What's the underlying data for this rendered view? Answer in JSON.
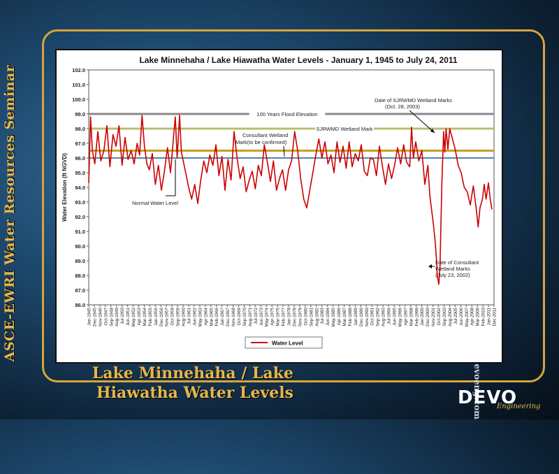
{
  "side_title": "ASCE-EWRI Water Resources Seminar",
  "side_url": "www.devoeng.com",
  "slide_title_line1": "Lake Minnehaha / Lake",
  "slide_title_line2": "Hiawatha Water Levels",
  "logo": {
    "name": "DEVO",
    "tagline": "Engineering"
  },
  "colors": {
    "series": "#cc0000",
    "flood_line": "#8a8a8a",
    "sjrwmd_line": "#b8bd72",
    "consultant_line": "#c8a020",
    "normal_line": "#5a84a8",
    "accent": "#e8b64a"
  },
  "chart_data": {
    "type": "line",
    "title": "Lake Minnehaha / Lake Hiawatha Water Levels - January 1, 1945 to July 24, 2011",
    "ylabel": "Water Elevation (ft NGVD)",
    "xlabel": "",
    "ylim": [
      86.0,
      102.0
    ],
    "yticks": [
      "86.0",
      "87.0",
      "88.0",
      "89.0",
      "90.0",
      "91.0",
      "92.0",
      "93.0",
      "94.0",
      "95.0",
      "96.0",
      "97.0",
      "98.0",
      "99.0",
      "100.0",
      "101.0",
      "102.0"
    ],
    "xlim": [
      1945.0,
      2011.92
    ],
    "xticks": [
      "Jan-1945",
      "Dec-1945",
      "Nov-1946",
      "Oct-1947",
      "Sep-1948",
      "Aug-1949",
      "Jul-1950",
      "Jun-1951",
      "May-1952",
      "Apr-1953",
      "Mar-1954",
      "Feb-1955",
      "Jan-1956",
      "Dec-1956",
      "Nov-1957",
      "Oct-1958",
      "Sep-1959",
      "Aug-1960",
      "Jul-1961",
      "Jun-1962",
      "May-1963",
      "Apr-1964",
      "Mar-1965",
      "Feb-1966",
      "Jan-1967",
      "Dec-1967",
      "Nov-1968",
      "Oct-1969",
      "Sep-1970",
      "Aug-1971",
      "Jul-1972",
      "Jun-1973",
      "May-1974",
      "Apr-1975",
      "Mar-1976",
      "Feb-1977",
      "Jan-1978",
      "Dec-1978",
      "Nov-1979",
      "Oct-1980",
      "Sep-1981",
      "Aug-1982",
      "Jul-1983",
      "Jun-1984",
      "May-1985",
      "Apr-1986",
      "Mar-1987",
      "Feb-1988",
      "Jan-1989",
      "Dec-1989",
      "Nov-1990",
      "Oct-1991",
      "Sep-1992",
      "Aug-1993",
      "Jul-1994",
      "Jun-1995",
      "May-1996",
      "Apr-1997",
      "Mar-1998",
      "Feb-1999",
      "Jan-2000",
      "Dec-2000",
      "Nov-2001",
      "Oct-2002",
      "Sep-2003",
      "Aug-2004",
      "Jul-2005",
      "Jun-2006",
      "May-2007",
      "Apr-2008",
      "Mar-2009",
      "Feb-2010",
      "Jan-2011",
      "Dec-2011"
    ],
    "grid": false,
    "legend": {
      "placement": "bottom-center",
      "entries": [
        "Water Level"
      ]
    },
    "reference_lines": [
      {
        "label": "100 Years Flood Elevation",
        "y": 99.0,
        "color": "#8a8a8a"
      },
      {
        "label": "SJRWMD Wetland Mark",
        "y": 98.0,
        "color": "#b8bd72"
      },
      {
        "label": "Consultant Wetland Mark(to be confirmed)",
        "y": 96.5,
        "color": "#c8a020"
      },
      {
        "label": "Normal Water Level",
        "y": 96.0,
        "color": "#5a84a8"
      }
    ],
    "annotations": [
      {
        "text": "Date of SJRWMD Wetland Marks",
        "text2": "(Oct. 28, 2003)"
      },
      {
        "text": "Date of Consultant",
        "text2": "Wetland Marks",
        "text3": "(July 23, 2002)"
      }
    ],
    "series": [
      {
        "name": "Water Level",
        "color": "#cc0000",
        "x": [
          1945.0,
          1945.3,
          1945.6,
          1946.0,
          1946.5,
          1947.0,
          1947.5,
          1948.0,
          1948.5,
          1949.0,
          1949.5,
          1950.0,
          1950.5,
          1951.0,
          1951.5,
          1952.0,
          1952.5,
          1953.0,
          1953.4,
          1953.8,
          1954.2,
          1954.6,
          1955.0,
          1955.5,
          1956.0,
          1956.5,
          1957.0,
          1957.5,
          1958.0,
          1958.5,
          1959.0,
          1959.3,
          1959.6,
          1960.0,
          1960.3,
          1960.6,
          1961.0,
          1961.5,
          1962.0,
          1962.5,
          1963.0,
          1963.5,
          1964.0,
          1964.5,
          1965.0,
          1965.5,
          1966.0,
          1966.5,
          1967.0,
          1967.5,
          1968.0,
          1968.5,
          1969.0,
          1969.5,
          1970.0,
          1970.5,
          1971.0,
          1971.5,
          1972.0,
          1972.5,
          1973.0,
          1973.5,
          1974.0,
          1974.5,
          1975.0,
          1975.5,
          1976.0,
          1976.5,
          1977.0,
          1977.5,
          1978.0,
          1978.5,
          1979.0,
          1979.5,
          1980.0,
          1980.5,
          1981.0,
          1981.5,
          1982.0,
          1982.5,
          1983.0,
          1983.5,
          1984.0,
          1984.5,
          1985.0,
          1985.5,
          1986.0,
          1986.5,
          1987.0,
          1987.5,
          1988.0,
          1988.5,
          1989.0,
          1989.5,
          1990.0,
          1990.5,
          1991.0,
          1991.5,
          1992.0,
          1992.5,
          1993.0,
          1993.5,
          1994.0,
          1994.5,
          1995.0,
          1995.5,
          1996.0,
          1996.5,
          1997.0,
          1997.5,
          1998.0,
          1998.3,
          1998.6,
          1999.0,
          1999.5,
          2000.0,
          2000.5,
          2001.0,
          2001.3,
          2001.6,
          2001.9,
          2002.2,
          2002.4,
          2002.55,
          2002.8,
          2003.0,
          2003.3,
          2003.6,
          2003.8,
          2004.0,
          2004.3,
          2004.6,
          2005.0,
          2005.5,
          2006.0,
          2006.5,
          2007.0,
          2007.5,
          2008.0,
          2008.5,
          2009.0,
          2009.3,
          2009.6,
          2010.0,
          2010.3,
          2010.6,
          2011.0,
          2011.3,
          2011.56
        ],
        "y": [
          94.3,
          98.8,
          96.5,
          95.6,
          97.8,
          95.8,
          96.5,
          98.2,
          95.4,
          97.6,
          96.8,
          98.2,
          95.5,
          97.4,
          95.9,
          96.5,
          95.6,
          97.0,
          96.2,
          98.9,
          96.8,
          95.6,
          95.2,
          96.3,
          94.2,
          95.5,
          93.8,
          95.1,
          96.7,
          95.0,
          97.4,
          98.8,
          96.0,
          98.9,
          96.4,
          95.8,
          95.0,
          94.0,
          93.2,
          94.2,
          92.9,
          94.5,
          95.8,
          95.0,
          96.2,
          95.5,
          96.9,
          94.8,
          96.1,
          93.8,
          95.9,
          94.5,
          97.8,
          96.0,
          94.6,
          95.4,
          93.7,
          94.5,
          95.1,
          93.9,
          95.5,
          94.8,
          96.9,
          95.7,
          94.4,
          95.8,
          93.8,
          94.6,
          95.2,
          93.8,
          95.2,
          95.8,
          97.8,
          96.5,
          94.6,
          93.2,
          92.6,
          93.8,
          95.0,
          96.2,
          97.3,
          96.0,
          97.1,
          95.6,
          96.2,
          95.0,
          97.1,
          95.7,
          96.8,
          95.3,
          97.1,
          95.4,
          96.3,
          95.8,
          96.9,
          95.1,
          94.8,
          96.0,
          95.9,
          94.8,
          96.8,
          95.4,
          94.2,
          95.6,
          94.6,
          95.5,
          96.7,
          95.6,
          96.9,
          95.7,
          95.4,
          98.1,
          96.0,
          97.1,
          95.8,
          96.5,
          94.2,
          95.5,
          93.5,
          92.5,
          91.5,
          90.3,
          89.2,
          88.0,
          87.4,
          88.6,
          94.2,
          97.8,
          96.4,
          98.0,
          96.6,
          98.0,
          97.4,
          96.6,
          95.5,
          95.0,
          94.0,
          93.7,
          92.8,
          94.1,
          92.5,
          91.3,
          92.6,
          93.2,
          94.2,
          93.2,
          94.3,
          93.2,
          92.5
        ]
      }
    ]
  }
}
